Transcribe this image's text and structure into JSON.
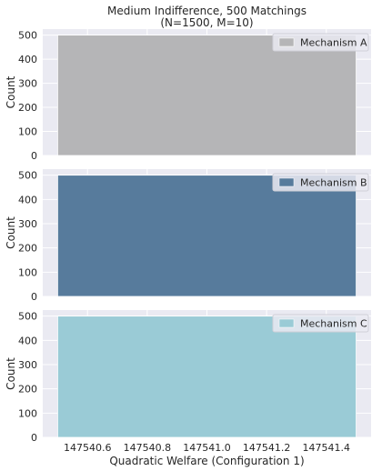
{
  "chart_data": {
    "type": "bar",
    "title": "Medium Indifference, 500 Matchings\n(N=1500, M=10)",
    "xlabel": "Quadratic Welfare (Configuration 1)",
    "xlim": [
      147540.45,
      147541.55
    ],
    "xticks": [
      147540.6,
      147540.8,
      147541.0,
      147541.2,
      147541.4
    ],
    "xtick_labels": [
      "147540.6",
      "147540.8",
      "147541.0",
      "147541.2",
      "147541.4"
    ],
    "grid": true,
    "legend_position": "top-right",
    "panels": [
      {
        "ylabel": "Count",
        "ylim": [
          0,
          525
        ],
        "yticks": [
          0,
          100,
          200,
          300,
          400,
          500
        ],
        "series": [
          {
            "name": "Mechanism A",
            "color": "#b5b5b7",
            "bins": [
              {
                "x0": 147540.5,
                "x1": 147541.5,
                "count": 500
              }
            ]
          }
        ]
      },
      {
        "ylabel": "Count",
        "ylim": [
          0,
          525
        ],
        "yticks": [
          0,
          100,
          200,
          300,
          400,
          500
        ],
        "series": [
          {
            "name": "Mechanism B",
            "color": "#577b9c",
            "bins": [
              {
                "x0": 147540.5,
                "x1": 147541.5,
                "count": 500
              }
            ]
          }
        ]
      },
      {
        "ylabel": "Count",
        "ylim": [
          0,
          525
        ],
        "yticks": [
          0,
          100,
          200,
          300,
          400,
          500
        ],
        "series": [
          {
            "name": "Mechanism C",
            "color": "#9acbd6",
            "bins": [
              {
                "x0": 147540.5,
                "x1": 147541.5,
                "count": 500
              }
            ]
          }
        ]
      }
    ]
  }
}
